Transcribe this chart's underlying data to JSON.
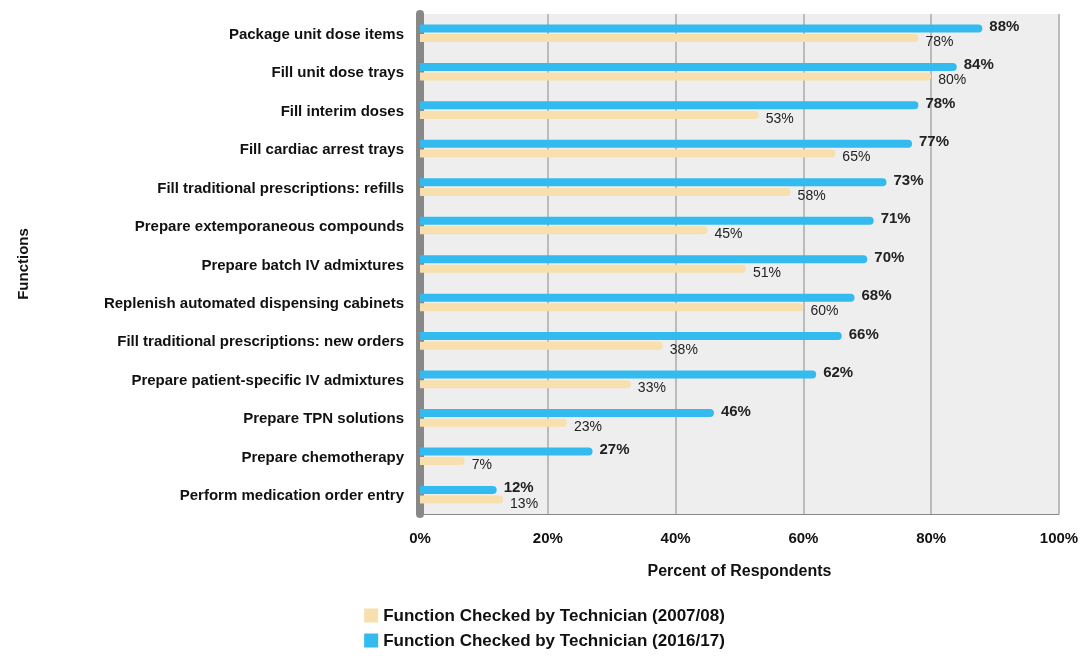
{
  "chart_data": {
    "type": "bar",
    "orientation": "horizontal",
    "xlabel": "Percent of Respondents",
    "ylabel": "Functions",
    "categories": [
      "Package unit dose items",
      "Fill unit dose trays",
      "Fill interim doses",
      "Fill cardiac arrest trays",
      "Fill traditional prescriptions: refills",
      "Prepare extemporaneous compounds",
      "Prepare batch IV admixtures",
      "Replenish automated dispensing cabinets",
      "Fill traditional prescriptions: new orders",
      "Prepare patient-specific IV admixtures",
      "Prepare TPN solutions",
      "Prepare chemotherapy",
      "Perform medication order entry"
    ],
    "series": [
      {
        "name": "Function Checked by Technician (2016/17)",
        "color": "#33bbf0",
        "values": [
          88,
          84,
          78,
          77,
          73,
          71,
          70,
          68,
          66,
          62,
          46,
          27,
          12
        ],
        "value_labels": [
          "88%",
          "84%",
          "78%",
          "77%",
          "73%",
          "71%",
          "70%",
          "68%",
          "66%",
          "62%",
          "46%",
          "27%",
          "12%"
        ]
      },
      {
        "name": "Function Checked by Technician (2007/08)",
        "color": "#f7dfae",
        "values": [
          78,
          80,
          53,
          65,
          58,
          45,
          51,
          60,
          38,
          33,
          23,
          7,
          13
        ],
        "value_labels": [
          "78%",
          "80%",
          "53%",
          "65%",
          "58%",
          "45%",
          "51%",
          "60%",
          "38%",
          "33%",
          "23%",
          "7%",
          "13%"
        ]
      }
    ],
    "xlim": [
      0,
      100
    ],
    "xticks": [
      {
        "value": 0,
        "label": "0%"
      },
      {
        "value": 20,
        "label": "20%"
      },
      {
        "value": 40,
        "label": "40%"
      },
      {
        "value": 60,
        "label": "60%"
      },
      {
        "value": 80,
        "label": "80%"
      },
      {
        "value": 100,
        "label": "100%"
      }
    ],
    "grid": "x",
    "legend": "bottom"
  }
}
